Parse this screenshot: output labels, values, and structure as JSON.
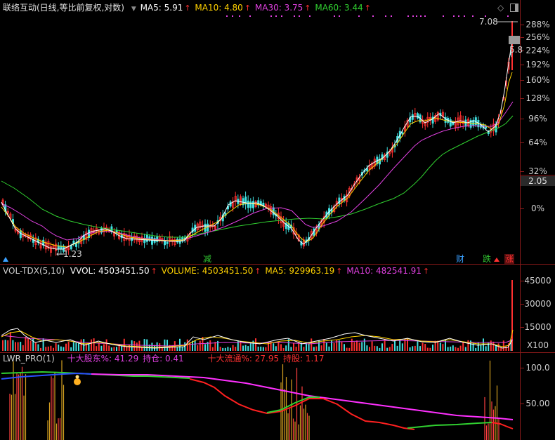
{
  "main": {
    "title": "联络互动(日线,等比前复权,对数)",
    "ma": [
      {
        "label": "MA5: 5.91",
        "color": "#ffffff"
      },
      {
        "label": "MA10: 4.80",
        "color": "#ffd200"
      },
      {
        "label": "MA30: 3.75",
        "color": "#e040e0"
      },
      {
        "label": "MA60: 3.44",
        "color": "#30d030"
      }
    ],
    "up_arrow": "↑",
    "high_label": "7.08",
    "high_arrow": "←",
    "low_label": "1.23",
    "low_arrow": "←",
    "cur_price_box": "5.8",
    "right_axis": [
      "288%",
      "256%",
      "224%",
      "192%",
      "160%",
      "128%",
      "96%",
      "64%",
      "32%",
      "2.05",
      "0%"
    ],
    "badges": [
      {
        "text": "减",
        "color": "#30c030"
      },
      {
        "text": "财",
        "color": "#3aa0ff"
      },
      {
        "text": "跌",
        "color": "#30c030"
      },
      {
        "text": "涨",
        "color": "#ff3030"
      }
    ]
  },
  "volume": {
    "title": "VOL-TDX(5,10)",
    "vvol": "VVOL: 4503451.50",
    "volume": "VOLUME: 4503451.50",
    "ma5": "MA5: 929963.19",
    "ma10": "MA10: 482541.91",
    "axis": [
      "45000",
      "30000",
      "15000",
      "X100"
    ]
  },
  "lwr": {
    "title": "LWR_PRO(1)",
    "s1_label": "十大股东%: 41.29",
    "s1_hold": "持仓: 0.41",
    "s2_label": "十大流通%: 27.95",
    "s2_hold": "持股: 1.17",
    "axis": [
      "100.0",
      "50.00"
    ]
  },
  "colors": {
    "up": "#ff3030",
    "down": "#40e0e0",
    "ma5": "#ffffff",
    "ma10": "#ffd200",
    "ma30": "#e040e0",
    "ma60": "#30d030"
  }
}
